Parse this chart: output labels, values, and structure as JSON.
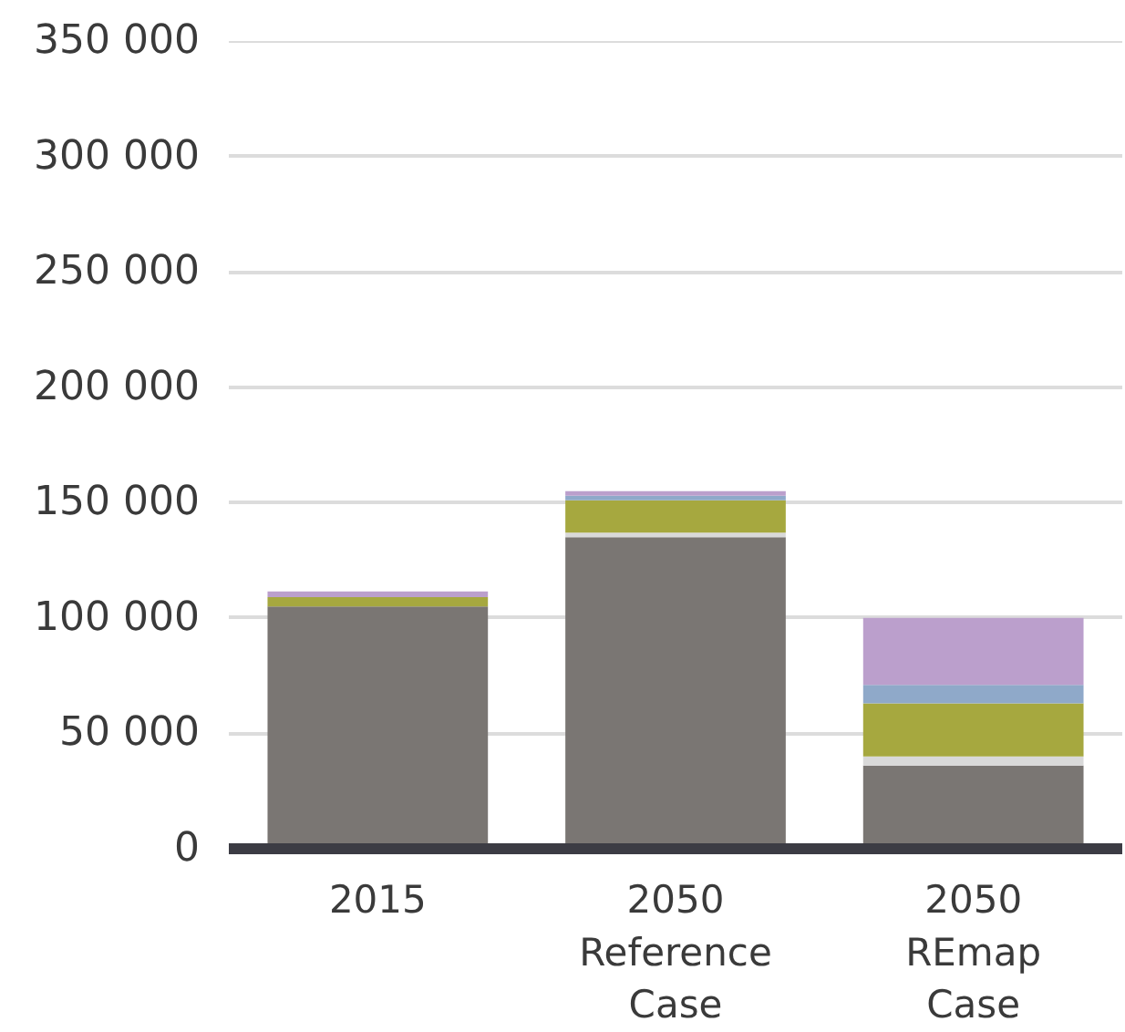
{
  "chart_data": {
    "type": "bar",
    "stacked": true,
    "categories": [
      "2015",
      "2050\nReference\nCase",
      "2050\nREmap\nCase"
    ],
    "series": [
      {
        "color": "#7a7673",
        "values": [
          105000,
          135000,
          36000
        ]
      },
      {
        "color": "#d9d9d9",
        "values": [
          null,
          2000,
          4000
        ]
      },
      {
        "color": "#a6a83f",
        "values": [
          4000,
          14000,
          23000
        ]
      },
      {
        "color": "#8fa9c9",
        "values": [
          null,
          2000,
          8000
        ]
      },
      {
        "color": "#bb9fcc",
        "values": [
          2500,
          2000,
          29000
        ]
      }
    ],
    "ylim": [
      0,
      350000
    ],
    "yticks": [
      0,
      {
        "value": 50000,
        "label": "50 000"
      },
      {
        "value": 100000,
        "label": "100 000"
      },
      {
        "value": 150000,
        "label": "150 000"
      },
      {
        "value": 200000,
        "label": "200 000"
      },
      {
        "value": 250000,
        "label": "250 000"
      },
      {
        "value": 300000,
        "label": "300 000"
      },
      {
        "value": 350000,
        "label": "350 000"
      }
    ],
    "grid": "y"
  }
}
